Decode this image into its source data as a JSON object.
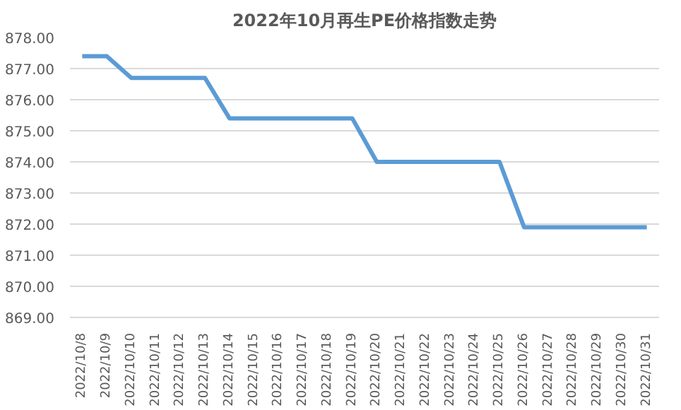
{
  "chart_data": {
    "type": "line",
    "title": "2022年10月再生PE价格指数走势",
    "categories": [
      "2022/10/8",
      "2022/10/9",
      "2022/10/10",
      "2022/10/11",
      "2022/10/12",
      "2022/10/13",
      "2022/10/14",
      "2022/10/15",
      "2022/10/16",
      "2022/10/17",
      "2022/10/18",
      "2022/10/19",
      "2022/10/20",
      "2022/10/21",
      "2022/10/22",
      "2022/10/23",
      "2022/10/24",
      "2022/10/25",
      "2022/10/26",
      "2022/10/27",
      "2022/10/28",
      "2022/10/29",
      "2022/10/30",
      "2022/10/31"
    ],
    "series": [
      {
        "color": "#5b9bd5",
        "values": [
          877.4,
          877.4,
          876.7,
          876.7,
          876.7,
          876.7,
          875.4,
          875.4,
          875.4,
          875.4,
          875.4,
          875.4,
          874.0,
          874.0,
          874.0,
          874.0,
          874.0,
          874.0,
          871.9,
          871.9,
          871.9,
          871.9,
          871.9,
          871.9
        ]
      }
    ],
    "ylim": [
      869,
      878
    ],
    "yticks": [
      {
        "value": 869,
        "label": "869.00"
      },
      {
        "value": 870,
        "label": "870.00"
      },
      {
        "value": 871,
        "label": "871.00"
      },
      {
        "value": 872,
        "label": "872.00"
      },
      {
        "value": 873,
        "label": "873.00"
      },
      {
        "value": 874,
        "label": "874.00"
      },
      {
        "value": 875,
        "label": "875.00"
      },
      {
        "value": 876,
        "label": "876.00"
      },
      {
        "value": 877,
        "label": "877.00"
      },
      {
        "value": 878,
        "label": "878.00"
      }
    ],
    "grid": "y",
    "marker": "none",
    "line_style": "solid"
  }
}
